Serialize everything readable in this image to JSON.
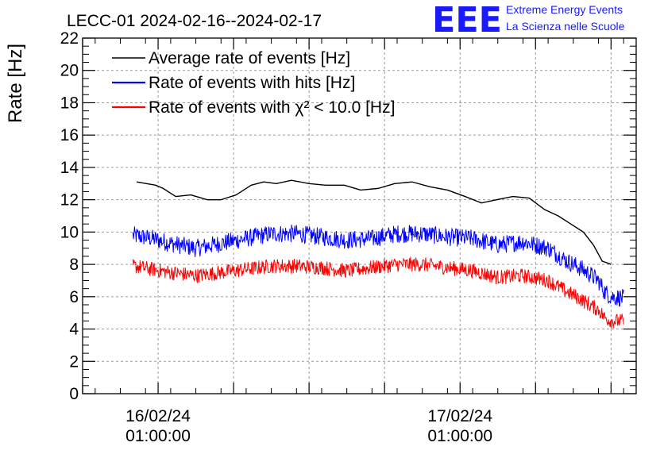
{
  "header": {
    "title": "LECC-01 2024-02-16--2024-02-17",
    "logo_mark": "EEE",
    "logo_line1": "Extreme Energy Events",
    "logo_line2": "La Scienza nelle Scuole"
  },
  "chart_data": {
    "type": "line",
    "ylabel": "Rate [Hz]",
    "ylim": [
      0,
      22
    ],
    "yticks": [
      "0",
      "2",
      "4",
      "6",
      "8",
      "10",
      "12",
      "14",
      "16",
      "18",
      "20",
      "22"
    ],
    "xlim_hours": [
      -5,
      39
    ],
    "xticks": [
      {
        "hour": 1,
        "line1": "16/02/24",
        "line2": "01:00:00"
      },
      {
        "hour": 25,
        "line1": "17/02/24",
        "line2": "01:00:00"
      }
    ],
    "grid": true,
    "legend_position": "top-left",
    "series": [
      {
        "name": "Average rate of events [Hz]",
        "color": "#000000",
        "noise": 0,
        "x_hours": [
          -0.7,
          0.8,
          1.4,
          2.4,
          3.6,
          4.9,
          6.0,
          7.2,
          8.4,
          9.4,
          10.4,
          11.6,
          13.0,
          14.3,
          15.8,
          17.1,
          18.5,
          19.8,
          21.2,
          22.6,
          24.0,
          25.4,
          26.7,
          27.9,
          29.2,
          30.5,
          31.7,
          32.8,
          33.8,
          34.8,
          35.6,
          36.3,
          37.0
        ],
        "values": [
          13.1,
          12.9,
          12.7,
          12.2,
          12.3,
          12.0,
          12.0,
          12.3,
          12.9,
          13.1,
          13.0,
          13.2,
          13.0,
          12.9,
          12.9,
          12.6,
          12.7,
          13.0,
          13.1,
          12.8,
          12.6,
          12.2,
          11.8,
          12.0,
          12.2,
          12.1,
          11.4,
          11.0,
          10.5,
          10.0,
          9.2,
          8.2,
          8.0
        ]
      },
      {
        "name": "Rate of events with hits [Hz]",
        "color": "#0000ff",
        "noise": 0.55,
        "x_hours": [
          -1.0,
          0.5,
          2.0,
          4.0,
          6.0,
          8.0,
          10.0,
          12.0,
          14.0,
          16.0,
          18.0,
          20.0,
          22.0,
          24.0,
          26.0,
          28.0,
          30.0,
          32.0,
          33.5,
          34.5,
          35.3,
          36.0,
          36.5,
          37.0,
          38.0
        ],
        "values": [
          9.8,
          9.6,
          9.3,
          9.0,
          9.3,
          9.6,
          9.9,
          9.9,
          9.7,
          9.5,
          9.6,
          9.9,
          9.9,
          9.7,
          9.6,
          9.2,
          9.4,
          9.0,
          8.2,
          7.8,
          7.4,
          7.0,
          6.3,
          6.0,
          5.9
        ]
      },
      {
        "name": "Rate of events with χ² < 10.0 [Hz]",
        "color": "#ff0000",
        "noise": 0.45,
        "x_hours": [
          -1.0,
          0.5,
          2.0,
          4.0,
          6.0,
          8.0,
          10.0,
          12.0,
          14.0,
          16.0,
          18.0,
          20.0,
          22.0,
          24.0,
          26.0,
          28.0,
          30.0,
          32.0,
          33.5,
          34.5,
          35.3,
          36.0,
          36.5,
          37.0,
          38.0
        ],
        "values": [
          7.9,
          7.7,
          7.5,
          7.3,
          7.5,
          7.7,
          7.9,
          7.9,
          7.8,
          7.6,
          7.8,
          8.0,
          8.0,
          7.8,
          7.6,
          7.2,
          7.3,
          7.0,
          6.3,
          5.9,
          5.5,
          5.2,
          4.7,
          4.5,
          4.5
        ]
      }
    ]
  }
}
